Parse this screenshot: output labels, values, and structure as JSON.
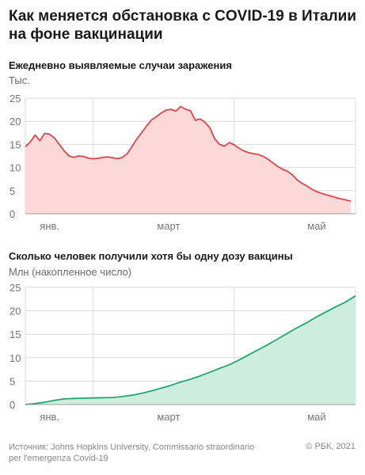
{
  "title": "Как меняется обстановка с COVID-19 в Италии на фоне вакцинации",
  "footer": {
    "source_line1": "Источник: Johns Hopkins University, Commissario straordinario",
    "source_line2": "per l'emergenza Covid-19",
    "credit": "© РБК, 2021"
  },
  "colors": {
    "cases_line": "#e0454a",
    "cases_fill": "#fbd9d9",
    "vacc_line": "#21a874",
    "vacc_fill": "#cdeedd",
    "grid": "#d9d9d9"
  },
  "chart_data": [
    {
      "type": "area",
      "title": "Ежедневно выявляемые случаи заражения",
      "ylabel": "Тыс.",
      "ylim": [
        0,
        25
      ],
      "yticks": [
        0,
        5,
        10,
        15,
        20,
        25
      ],
      "month_labels": [
        {
          "label": "янв.",
          "x": 10
        },
        {
          "label": "март",
          "x": 59
        },
        {
          "label": "май",
          "x": 120
        }
      ],
      "grid": true,
      "series": [
        {
          "x": [
            0,
            2,
            4,
            6,
            8,
            10,
            12,
            14,
            16,
            18,
            20,
            22,
            24,
            26,
            28,
            30,
            32,
            34,
            36,
            38,
            40,
            42,
            44,
            46,
            48,
            50,
            52,
            54,
            56,
            58,
            60,
            62,
            64,
            66,
            68,
            70,
            72,
            74,
            76,
            78,
            80,
            82,
            84,
            86,
            88,
            90,
            92,
            94,
            96,
            98,
            100,
            102,
            104,
            106,
            108,
            110,
            112,
            114,
            116,
            118,
            120,
            122,
            124,
            126,
            128,
            130,
            132,
            134
          ],
          "values": [
            14.5,
            15.5,
            17.0,
            15.8,
            17.4,
            17.2,
            16.4,
            15.0,
            13.6,
            12.5,
            12.2,
            12.5,
            12.4,
            12.0,
            11.9,
            12.0,
            12.2,
            12.3,
            12.1,
            11.9,
            12.2,
            13.0,
            14.6,
            16.2,
            17.6,
            19.0,
            20.3,
            21.0,
            21.8,
            22.4,
            22.6,
            22.2,
            23.2,
            22.6,
            22.3,
            20.2,
            20.5,
            19.8,
            18.6,
            16.2,
            15.0,
            14.6,
            15.4,
            14.9,
            14.2,
            13.6,
            13.2,
            13.0,
            12.8,
            12.4,
            11.8,
            11.0,
            10.2,
            9.6,
            9.2,
            8.4,
            7.3,
            6.6,
            6.0,
            5.3,
            4.8,
            4.4,
            4.1,
            3.8,
            3.5,
            3.2,
            3.0,
            2.7
          ]
        }
      ]
    },
    {
      "type": "area",
      "title": "Сколько человек получили хотя бы одну дозу вакцины",
      "ylabel": "Млн (накопленное число)",
      "ylim": [
        0,
        25
      ],
      "yticks": [
        0,
        5,
        10,
        15,
        20,
        25
      ],
      "month_labels": [
        {
          "label": "янв.",
          "x": 10
        },
        {
          "label": "март",
          "x": 59
        },
        {
          "label": "май",
          "x": 120
        }
      ],
      "grid": true,
      "series": [
        {
          "x": [
            0,
            4,
            8,
            12,
            16,
            20,
            24,
            28,
            32,
            36,
            40,
            44,
            48,
            52,
            56,
            60,
            64,
            68,
            72,
            76,
            80,
            84,
            88,
            92,
            96,
            100,
            104,
            108,
            112,
            116,
            120,
            124,
            128,
            132,
            136
          ],
          "values": [
            0.0,
            0.2,
            0.5,
            0.9,
            1.2,
            1.3,
            1.35,
            1.4,
            1.45,
            1.5,
            1.7,
            2.0,
            2.4,
            2.9,
            3.5,
            4.1,
            4.8,
            5.4,
            6.1,
            6.9,
            7.7,
            8.5,
            9.5,
            10.6,
            11.7,
            12.8,
            14.0,
            15.2,
            16.4,
            17.5,
            18.7,
            19.8,
            20.9,
            21.9,
            23.2
          ]
        }
      ]
    }
  ]
}
